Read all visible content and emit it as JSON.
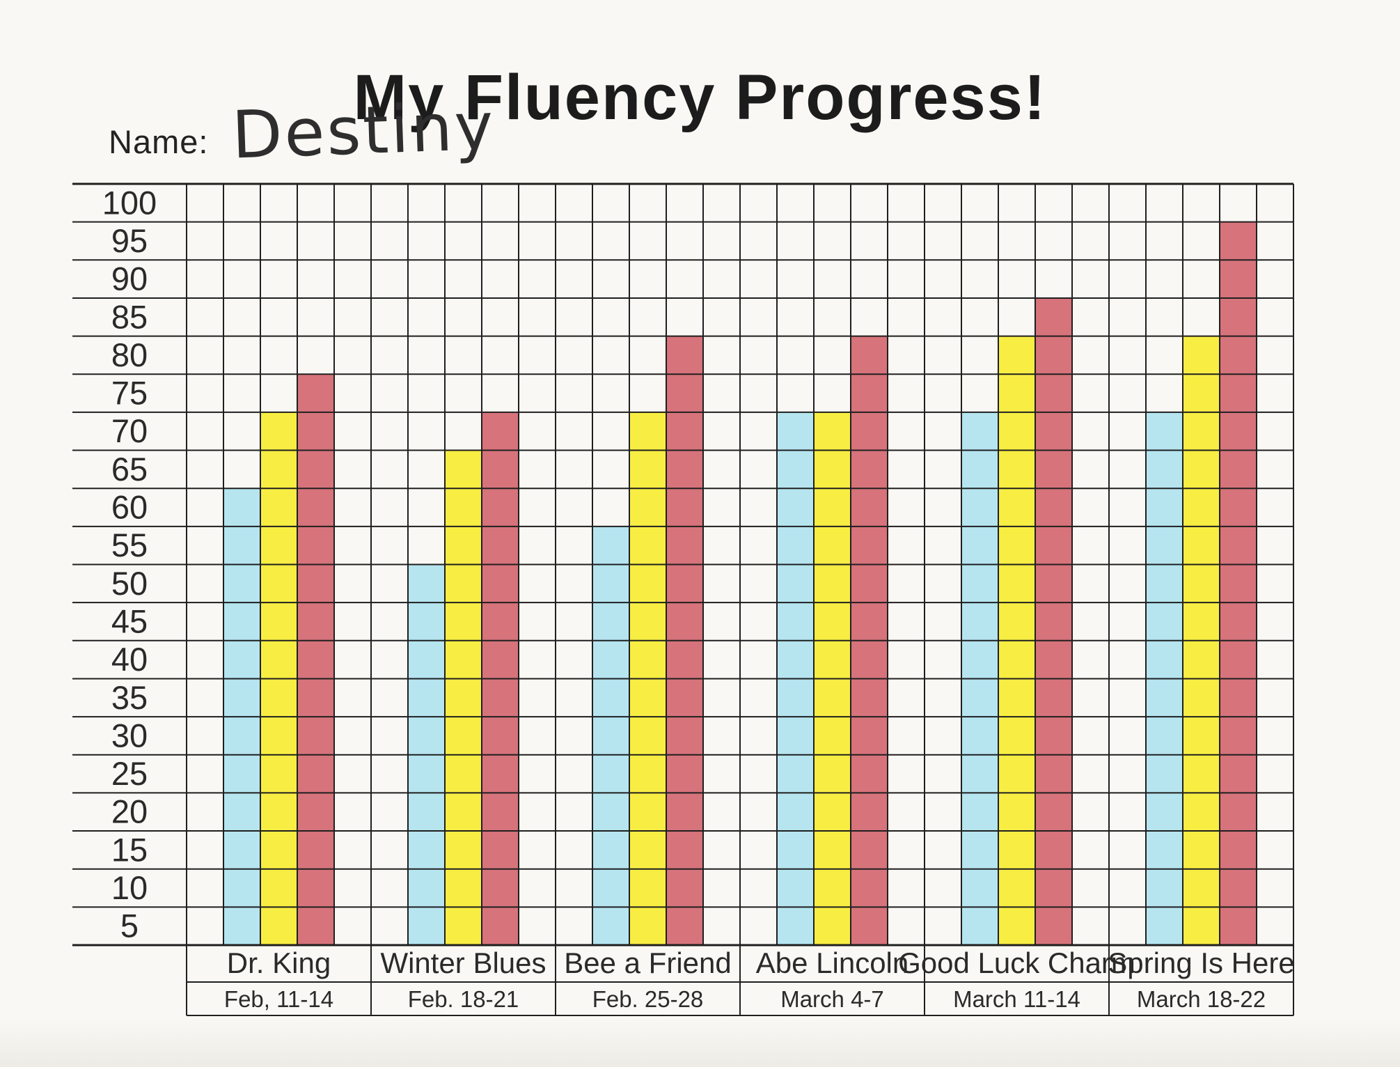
{
  "header": {
    "title": "My Fluency Progress!"
  },
  "name_field": {
    "label": "Name:",
    "value": "Destiny"
  },
  "colors": {
    "paper": "#f9f8f4",
    "grid_line": "#1f1f1f",
    "text": "#2a2a2a",
    "bar_blue": "#b6e5f0",
    "bar_yellow": "#f8ee43",
    "bar_red": "#d7737b"
  },
  "chart_data": {
    "type": "bar",
    "title": "My Fluency Progress!",
    "categories": [
      "Dr. King",
      "Winter Blues",
      "Bee a Friend",
      "Abe Lincoln",
      "Good Luck Charm",
      "Spring Is Here"
    ],
    "category_dates": [
      "Feb, 11-14",
      "Feb. 18-21",
      "Feb. 25-28",
      "March 4-7",
      "March 11-14",
      "March 18-22"
    ],
    "series": [
      {
        "name": "blue",
        "color": "#b6e5f0",
        "values": [
          60,
          50,
          55,
          70,
          70,
          70
        ]
      },
      {
        "name": "yellow",
        "color": "#f8ee43",
        "values": [
          70,
          65,
          70,
          70,
          80,
          80
        ]
      },
      {
        "name": "red",
        "color": "#d7737b",
        "values": [
          75,
          70,
          80,
          80,
          85,
          95
        ]
      }
    ],
    "y_ticks": [
      100,
      95,
      90,
      85,
      80,
      75,
      70,
      65,
      60,
      55,
      50,
      45,
      40,
      35,
      30,
      25,
      20,
      15,
      10,
      5
    ],
    "ylim": [
      0,
      100
    ],
    "y_step": 5,
    "grid": true,
    "legend": "none"
  }
}
